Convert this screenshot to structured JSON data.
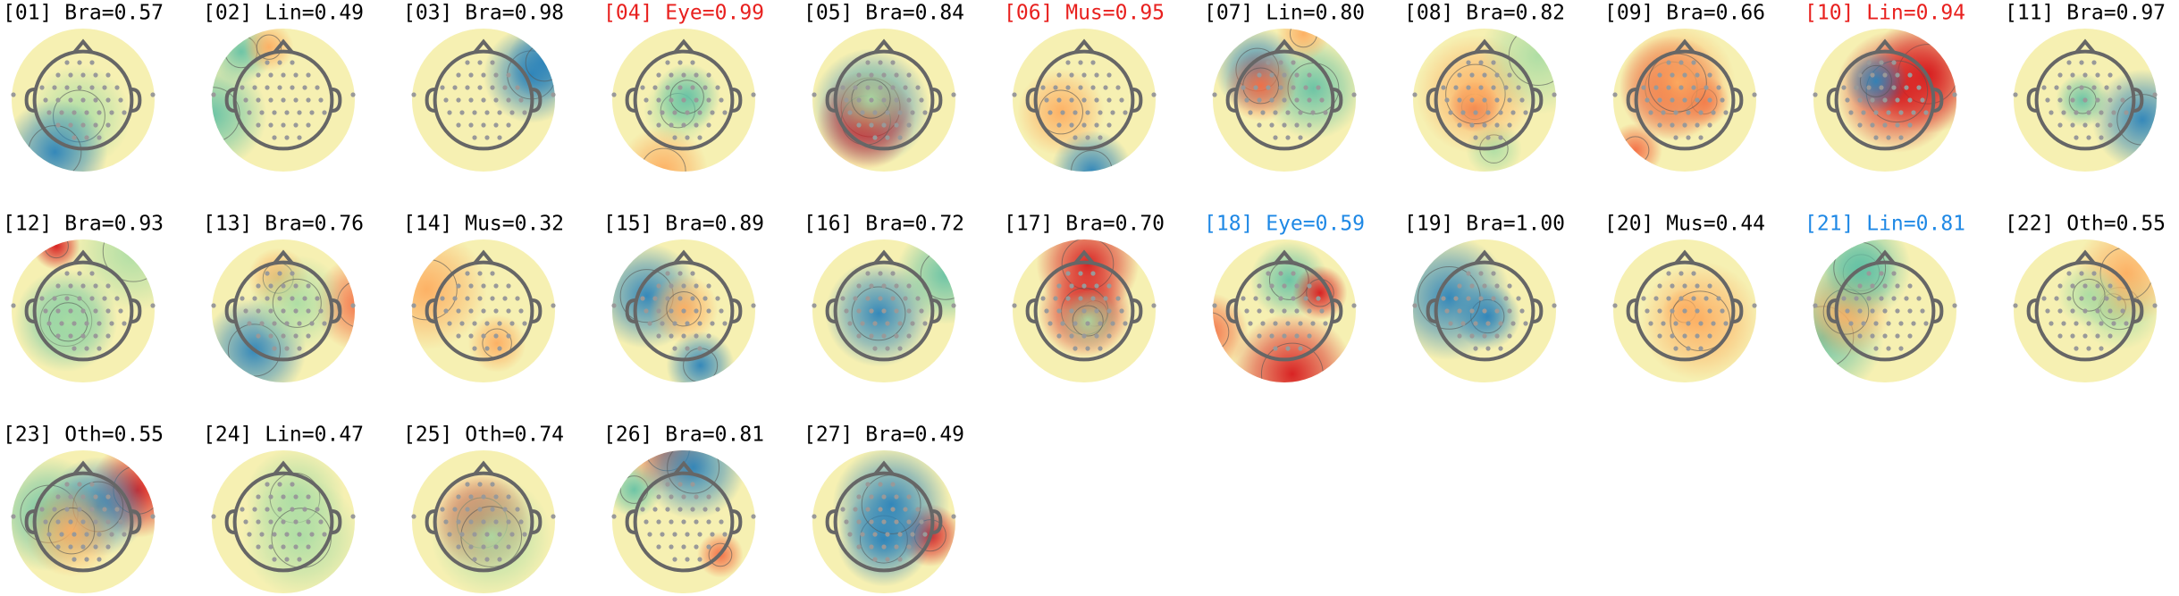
{
  "components": [
    {
      "label": "[01] Bra=0.57",
      "color": "#000000"
    },
    {
      "label": "[02] Lin=0.49",
      "color": "#000000"
    },
    {
      "label": "[03] Bra=0.98",
      "color": "#000000"
    },
    {
      "label": "[04] Eye=0.99",
      "color": "#e8201e"
    },
    {
      "label": "[05] Bra=0.84",
      "color": "#000000"
    },
    {
      "label": "[06] Mus=0.95",
      "color": "#e8201e"
    },
    {
      "label": "[07] Lin=0.80",
      "color": "#000000"
    },
    {
      "label": "[08] Bra=0.82",
      "color": "#000000"
    },
    {
      "label": "[09] Bra=0.66",
      "color": "#000000"
    },
    {
      "label": "[10] Lin=0.94",
      "color": "#e8201e"
    },
    {
      "label": "[11] Bra=0.97",
      "color": "#000000"
    },
    {
      "label": "[12] Bra=0.93",
      "color": "#000000"
    },
    {
      "label": "[13] Bra=0.76",
      "color": "#000000"
    },
    {
      "label": "[14] Mus=0.32",
      "color": "#000000"
    },
    {
      "label": "[15] Bra=0.89",
      "color": "#000000"
    },
    {
      "label": "[16] Bra=0.72",
      "color": "#000000"
    },
    {
      "label": "[17] Bra=0.70",
      "color": "#000000"
    },
    {
      "label": "[18] Eye=0.59",
      "color": "#1e88e5"
    },
    {
      "label": "[19] Bra=1.00",
      "color": "#000000"
    },
    {
      "label": "[20] Mus=0.44",
      "color": "#000000"
    },
    {
      "label": "[21] Lin=0.81",
      "color": "#1e88e5"
    },
    {
      "label": "[22] Oth=0.55",
      "color": "#000000"
    },
    {
      "label": "[23] Oth=0.55",
      "color": "#000000"
    },
    {
      "label": "[24] Lin=0.47",
      "color": "#000000"
    },
    {
      "label": "[25] Oth=0.74",
      "color": "#000000"
    },
    {
      "label": "[26] Bra=0.81",
      "color": "#000000"
    },
    {
      "label": "[27] Bra=0.49",
      "color": "#000000"
    }
  ]
}
